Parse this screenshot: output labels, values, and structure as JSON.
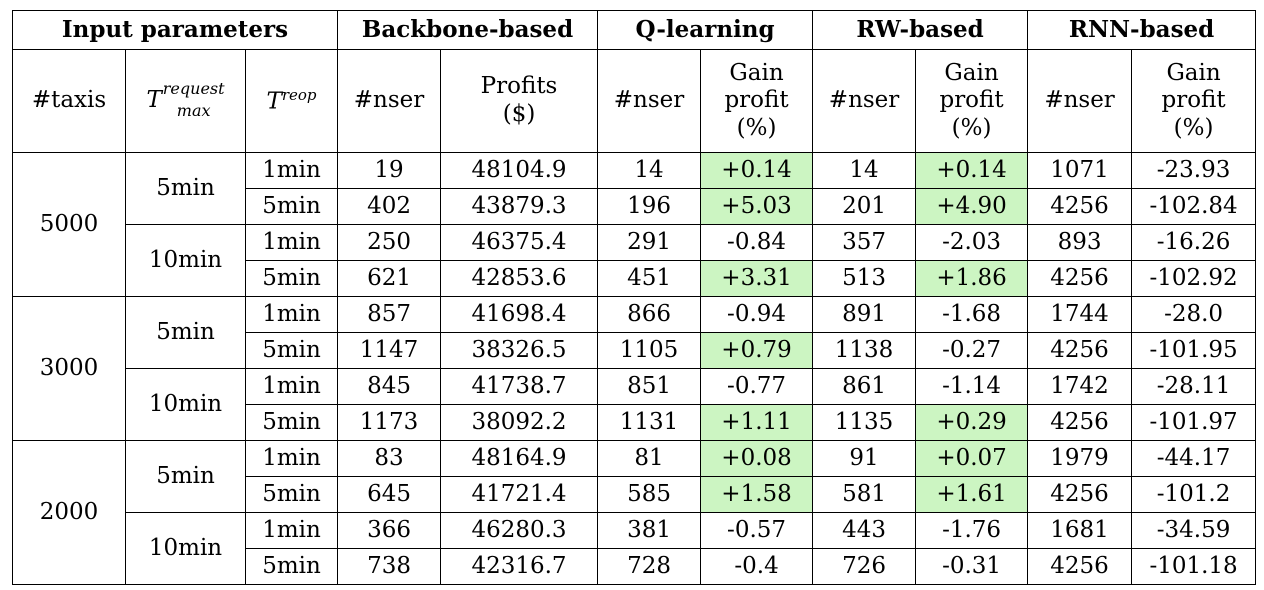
{
  "header": {
    "groups": [
      "Input parameters",
      "Backbone-based",
      "Q-learning",
      "RW-based",
      "RNN-based"
    ],
    "col_taxis": "#taxis",
    "col_tmax_base": "T",
    "col_tmax_sup": "request",
    "col_tmax_sub": "max",
    "col_treop_base": "T",
    "col_treop_sup": "reop",
    "col_nser": "#nser",
    "profits_line1": "Profits",
    "profits_line2": "($)",
    "gain_line1": "Gain",
    "gain_line2": "profit",
    "gain_line3": "(%)"
  },
  "blocks": [
    {
      "taxis": "5000",
      "groups": [
        {
          "tmax": "5min",
          "rows": [
            {
              "treop": "1min",
              "bb_nser": "19",
              "bb_profit": "48104.9",
              "q_nser": "14",
              "q_gain": "+0.14",
              "q_hl": true,
              "rw_nser": "14",
              "rw_gain": "+0.14",
              "rw_hl": true,
              "rnn_nser": "1071",
              "rnn_gain": "-23.93"
            },
            {
              "treop": "5min",
              "bb_nser": "402",
              "bb_profit": "43879.3",
              "q_nser": "196",
              "q_gain": "+5.03",
              "q_hl": true,
              "rw_nser": "201",
              "rw_gain": "+4.90",
              "rw_hl": true,
              "rnn_nser": "4256",
              "rnn_gain": "-102.84"
            }
          ]
        },
        {
          "tmax": "10min",
          "rows": [
            {
              "treop": "1min",
              "bb_nser": "250",
              "bb_profit": "46375.4",
              "q_nser": "291",
              "q_gain": "-0.84",
              "q_hl": false,
              "rw_nser": "357",
              "rw_gain": "-2.03",
              "rw_hl": false,
              "rnn_nser": "893",
              "rnn_gain": "-16.26"
            },
            {
              "treop": "5min",
              "bb_nser": "621",
              "bb_profit": "42853.6",
              "q_nser": "451",
              "q_gain": "+3.31",
              "q_hl": true,
              "rw_nser": "513",
              "rw_gain": "+1.86",
              "rw_hl": true,
              "rnn_nser": "4256",
              "rnn_gain": "-102.92"
            }
          ]
        }
      ]
    },
    {
      "taxis": "3000",
      "groups": [
        {
          "tmax": "5min",
          "rows": [
            {
              "treop": "1min",
              "bb_nser": "857",
              "bb_profit": "41698.4",
              "q_nser": "866",
              "q_gain": "-0.94",
              "q_hl": false,
              "rw_nser": "891",
              "rw_gain": "-1.68",
              "rw_hl": false,
              "rnn_nser": "1744",
              "rnn_gain": "-28.0"
            },
            {
              "treop": "5min",
              "bb_nser": "1147",
              "bb_profit": "38326.5",
              "q_nser": "1105",
              "q_gain": "+0.79",
              "q_hl": true,
              "rw_nser": "1138",
              "rw_gain": "-0.27",
              "rw_hl": false,
              "rnn_nser": "4256",
              "rnn_gain": "-101.95"
            }
          ]
        },
        {
          "tmax": "10min",
          "rows": [
            {
              "treop": "1min",
              "bb_nser": "845",
              "bb_profit": "41738.7",
              "q_nser": "851",
              "q_gain": "-0.77",
              "q_hl": false,
              "rw_nser": "861",
              "rw_gain": "-1.14",
              "rw_hl": false,
              "rnn_nser": "1742",
              "rnn_gain": "-28.11"
            },
            {
              "treop": "5min",
              "bb_nser": "1173",
              "bb_profit": "38092.2",
              "q_nser": "1131",
              "q_gain": "+1.11",
              "q_hl": true,
              "rw_nser": "1135",
              "rw_gain": "+0.29",
              "rw_hl": true,
              "rnn_nser": "4256",
              "rnn_gain": "-101.97"
            }
          ]
        }
      ]
    },
    {
      "taxis": "2000",
      "groups": [
        {
          "tmax": "5min",
          "rows": [
            {
              "treop": "1min",
              "bb_nser": "83",
              "bb_profit": "48164.9",
              "q_nser": "81",
              "q_gain": "+0.08",
              "q_hl": true,
              "rw_nser": "91",
              "rw_gain": "+0.07",
              "rw_hl": true,
              "rnn_nser": "1979",
              "rnn_gain": "-44.17"
            },
            {
              "treop": "5min",
              "bb_nser": "645",
              "bb_profit": "41721.4",
              "q_nser": "585",
              "q_gain": "+1.58",
              "q_hl": true,
              "rw_nser": "581",
              "rw_gain": "+1.61",
              "rw_hl": true,
              "rnn_nser": "4256",
              "rnn_gain": "-101.2"
            }
          ]
        },
        {
          "tmax": "10min",
          "rows": [
            {
              "treop": "1min",
              "bb_nser": "366",
              "bb_profit": "46280.3",
              "q_nser": "381",
              "q_gain": "-0.57",
              "q_hl": false,
              "rw_nser": "443",
              "rw_gain": "-1.76",
              "rw_hl": false,
              "rnn_nser": "1681",
              "rnn_gain": "-34.59"
            },
            {
              "treop": "5min",
              "bb_nser": "738",
              "bb_profit": "42316.7",
              "q_nser": "728",
              "q_gain": "-0.4",
              "q_hl": false,
              "rw_nser": "726",
              "rw_gain": "-0.31",
              "rw_hl": false,
              "rnn_nser": "4256",
              "rnn_gain": "-101.18"
            }
          ]
        }
      ]
    }
  ],
  "colors": {
    "highlight": "#ccf5c2",
    "border": "#000000"
  }
}
